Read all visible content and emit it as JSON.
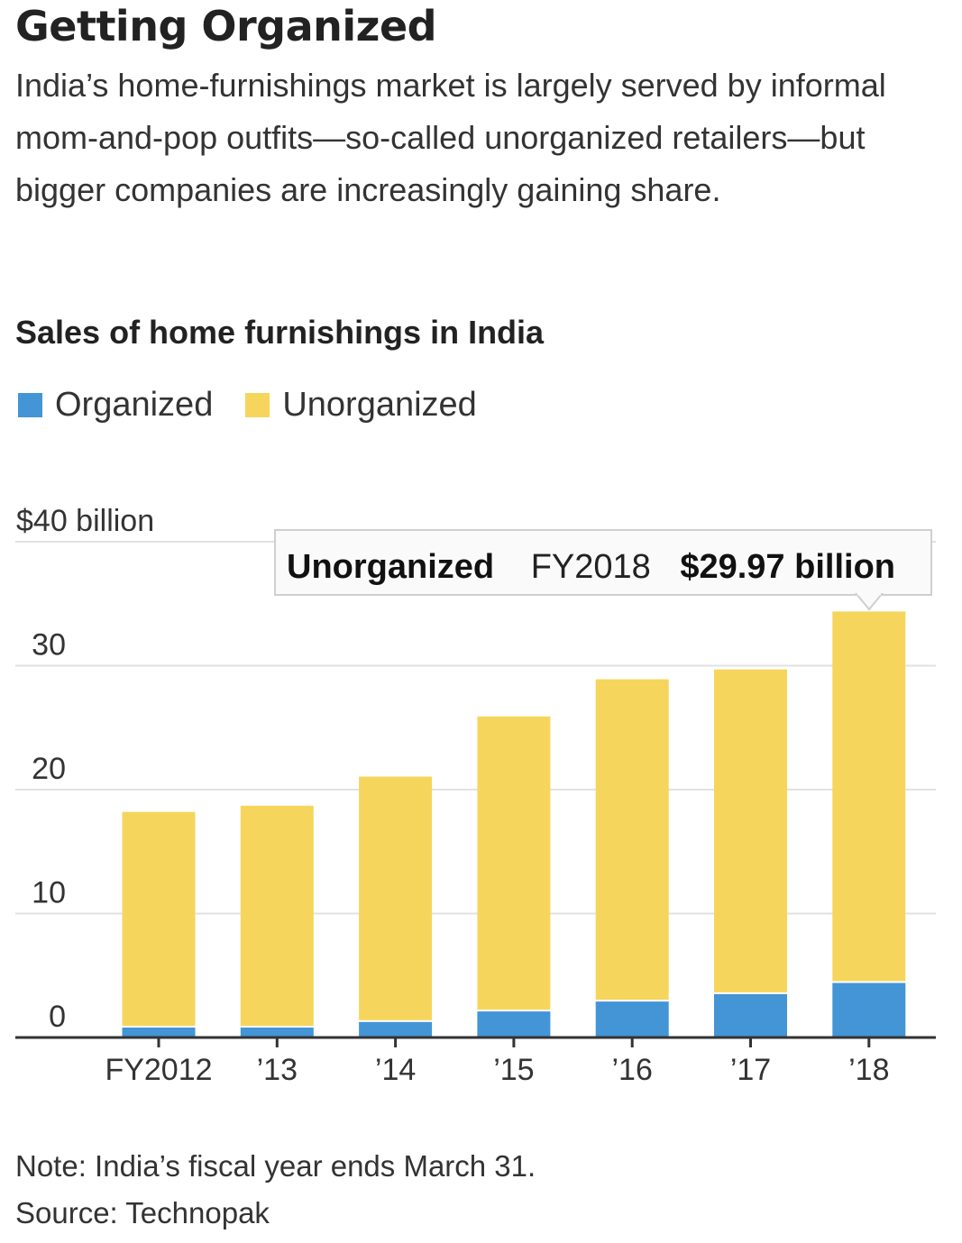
{
  "header": {
    "title": "Getting Organized",
    "subtitle": "India’s home-furnishings market is largely served by informal mom-and-pop outfits—so-called unorganized retailers—but bigger companies are increasingly gaining share."
  },
  "chart_title": "Sales of home furnishings in India",
  "legend": [
    {
      "label": "Organized",
      "color": "#4395d6"
    },
    {
      "label": "Unorganized",
      "color": "#f6d55c"
    }
  ],
  "tooltip": {
    "series": "Unorganized",
    "period": "FY2018",
    "value": "$29.97 billion"
  },
  "footer": {
    "note": "Note: India’s fiscal year ends March 31.",
    "source": "Source: Technopak"
  },
  "chart_data": {
    "type": "bar",
    "stacked": true,
    "title": "Sales of home furnishings in India",
    "xlabel": "",
    "ylabel": "",
    "categories": [
      "FY2012",
      "’13",
      "’14",
      "’15",
      "’16",
      "’17",
      "’18"
    ],
    "series": [
      {
        "name": "Organized",
        "color": "#4395d6",
        "values": [
          0.8,
          0.8,
          1.25,
          2.1,
          2.9,
          3.5,
          4.4
        ]
      },
      {
        "name": "Unorganized",
        "color": "#f6d55c",
        "values": [
          17.4,
          17.9,
          19.8,
          23.8,
          26.0,
          26.2,
          29.97
        ]
      }
    ],
    "ylim": [
      0,
      40
    ],
    "yticks": [
      0,
      10,
      20,
      30,
      40
    ],
    "ytick_labels": [
      "0",
      "10",
      "20",
      "30",
      "$40 billion"
    ],
    "grid": true,
    "legend_position": "top-left",
    "annotation": "Unorganized FY2018 $29.97 billion"
  }
}
